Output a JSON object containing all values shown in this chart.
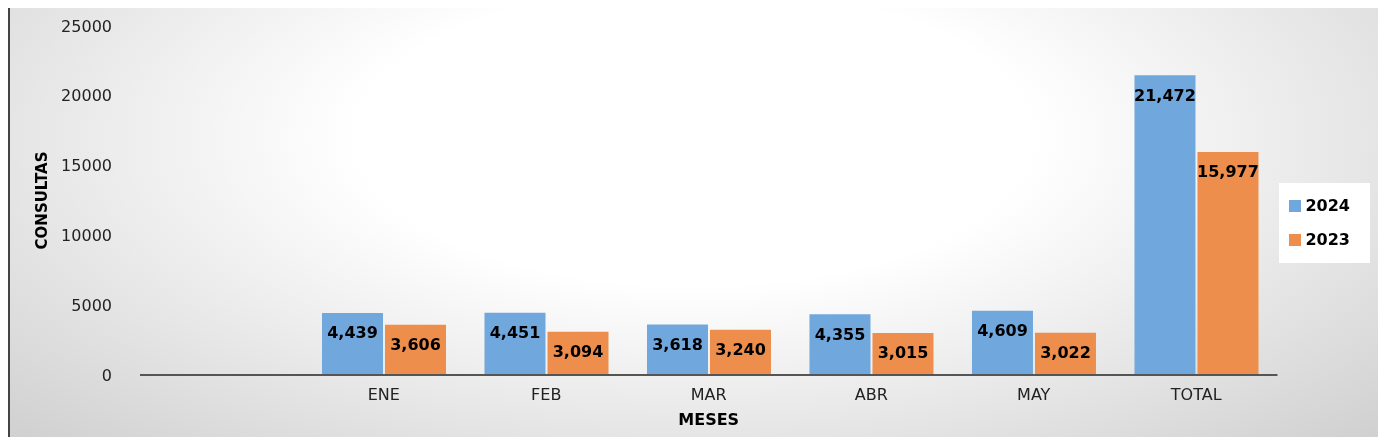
{
  "chart_data": {
    "type": "bar",
    "xlabel": "MESES",
    "ylabel": "CONSULTAS",
    "categories": [
      null,
      "ENE",
      "FEB",
      "MAR",
      "ABR",
      "MAY",
      "TOTAL"
    ],
    "series": [
      {
        "name": "2024",
        "color": "#70a7dc",
        "values": [
          null,
          4439,
          4451,
          3618,
          4355,
          4609,
          21472
        ],
        "value_labels": [
          null,
          "4,439",
          "4,451",
          "3,618",
          "4,355",
          "4,609",
          "21,472"
        ]
      },
      {
        "name": "2023",
        "color": "#ed8e4c",
        "values": [
          null,
          3606,
          3094,
          3240,
          3015,
          3022,
          15977
        ],
        "value_labels": [
          null,
          "3,606",
          "3,094",
          "3,240",
          "3,015",
          "3,022",
          "15,977"
        ]
      }
    ],
    "ylim": [
      0,
      25000
    ],
    "yticks": [
      0,
      5000,
      10000,
      15000,
      20000,
      25000
    ],
    "grid": false,
    "legend": "right"
  }
}
